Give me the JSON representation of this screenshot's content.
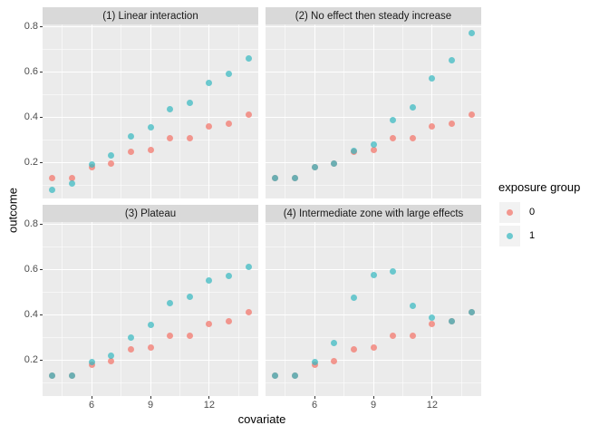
{
  "figure": {
    "x_axis_title": "covariate",
    "y_axis_title": "outcome",
    "legend": {
      "title": "exposure group",
      "entries": [
        {
          "label": "0",
          "group": "0"
        },
        {
          "label": "1",
          "group": "1"
        }
      ]
    }
  },
  "chart_data": {
    "type": "scatter",
    "facet_layout": "2x2",
    "xlabel": "covariate",
    "ylabel": "outcome",
    "legend_title": "exposure group",
    "legend_position": "right",
    "grid": "on",
    "x_ticks": [
      6,
      9,
      12
    ],
    "y_ticks": [
      0.8,
      0.6,
      0.4,
      0.2
    ],
    "x_minor_ticks": [
      4.5,
      7.5,
      10.5,
      13.5
    ],
    "y_minor_ticks": [
      0.7,
      0.5,
      0.3,
      0.1
    ],
    "xlim": [
      3.5,
      14.5
    ],
    "ylim": [
      0.04,
      0.81
    ],
    "x": [
      4,
      5,
      6,
      7,
      8,
      9,
      10,
      11,
      12,
      13,
      14
    ],
    "panels": [
      {
        "title": "(1) Linear interaction",
        "series": [
          {
            "name": "0",
            "values": [
              0.13,
              0.13,
              0.18,
              0.195,
              0.245,
              0.255,
              0.305,
              0.305,
              0.36,
              0.37,
              0.41
            ]
          },
          {
            "name": "1",
            "values": [
              0.08,
              0.105,
              0.19,
              0.23,
              0.315,
              0.355,
              0.435,
              0.465,
              0.55,
              0.59,
              0.66
            ]
          }
        ]
      },
      {
        "title": "(2) No effect then steady increase",
        "series": [
          {
            "name": "0",
            "values": [
              0.13,
              0.13,
              0.18,
              0.195,
              0.245,
              0.255,
              0.305,
              0.305,
              0.36,
              0.37,
              0.41
            ]
          },
          {
            "name": "1",
            "values": [
              0.13,
              0.13,
              0.18,
              0.195,
              0.25,
              0.28,
              0.385,
              0.445,
              0.57,
              0.65,
              0.77
            ]
          }
        ]
      },
      {
        "title": "(3) Plateau",
        "series": [
          {
            "name": "0",
            "values": [
              0.13,
              0.13,
              0.18,
              0.195,
              0.245,
              0.255,
              0.305,
              0.305,
              0.36,
              0.37,
              0.41
            ]
          },
          {
            "name": "1",
            "values": [
              0.13,
              0.13,
              0.19,
              0.22,
              0.3,
              0.355,
              0.45,
              0.48,
              0.55,
              0.57,
              0.61
            ]
          }
        ]
      },
      {
        "title": "(4) Intermediate zone with large effects",
        "series": [
          {
            "name": "0",
            "values": [
              0.13,
              0.13,
              0.18,
              0.195,
              0.245,
              0.255,
              0.305,
              0.305,
              0.36,
              0.37,
              0.41
            ]
          },
          {
            "name": "1",
            "values": [
              0.13,
              0.13,
              0.19,
              0.275,
              0.475,
              0.575,
              0.59,
              0.44,
              0.385,
              0.37,
              0.41
            ]
          }
        ]
      }
    ],
    "colors": {
      "group0": "#F8766D",
      "group1": "#00BFC4",
      "group0_rendered": "rgba(243,120,110,0.75)",
      "group1_rendered": "rgba(55,185,192,0.72)",
      "panel_background": "#EBEBEB",
      "strip_background": "#D9D9D9",
      "legend_key_background": "#F2F2F2",
      "gridline": "#FFFFFF",
      "tick_label": "#4D4D4D"
    }
  }
}
